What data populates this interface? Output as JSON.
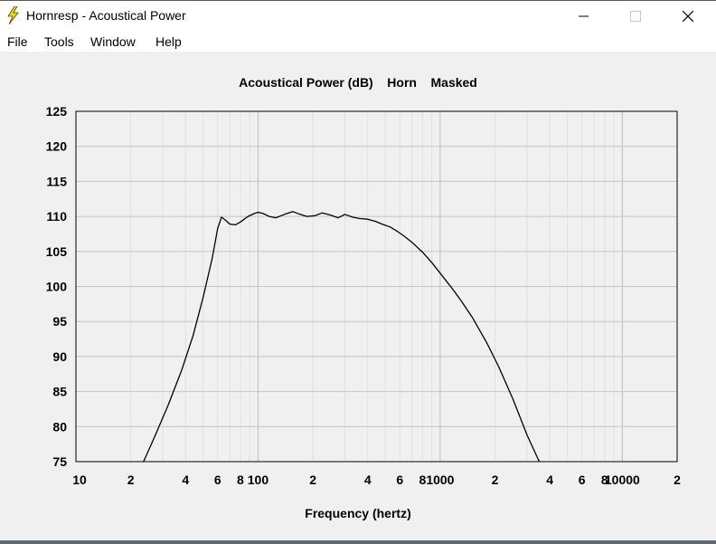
{
  "window": {
    "title": "Hornresp - Acoustical Power",
    "icon": "lightning-bolt-icon",
    "controls": {
      "minimize": "minimize-icon",
      "maximize": "maximize-icon",
      "close": "close-icon"
    }
  },
  "menu": {
    "items": [
      "File",
      "Tools",
      "Window",
      "Help"
    ]
  },
  "chart_data": {
    "type": "line",
    "title": "Acoustical Power (dB)    Horn    Masked",
    "xlabel": "Frequency (hertz)",
    "ylabel": "",
    "xscale": "log",
    "xlim": [
      10,
      20000
    ],
    "ylim": [
      75,
      125
    ],
    "y_ticks": [
      "75",
      "80",
      "85",
      "90",
      "95",
      "100",
      "105",
      "110",
      "115",
      "120",
      "125"
    ],
    "x_tick_labels": [
      {
        "f": 10,
        "label": "10"
      },
      {
        "f": 20,
        "label": "2"
      },
      {
        "f": 40,
        "label": "4"
      },
      {
        "f": 60,
        "label": "6"
      },
      {
        "f": 80,
        "label": "8"
      },
      {
        "f": 100,
        "label": "100"
      },
      {
        "f": 200,
        "label": "2"
      },
      {
        "f": 400,
        "label": "4"
      },
      {
        "f": 600,
        "label": "6"
      },
      {
        "f": 800,
        "label": "8"
      },
      {
        "f": 1000,
        "label": "1000"
      },
      {
        "f": 2000,
        "label": "2"
      },
      {
        "f": 4000,
        "label": "4"
      },
      {
        "f": 6000,
        "label": "6"
      },
      {
        "f": 8000,
        "label": "8"
      },
      {
        "f": 10000,
        "label": "10000"
      },
      {
        "f": 20000,
        "label": "2"
      }
    ],
    "grid": true,
    "line_color": "#000000",
    "series": [
      {
        "x": [
          23.5,
          27,
          32,
          38,
          44,
          50,
          56,
          60,
          63,
          66,
          70,
          75,
          80,
          88,
          95,
          100,
          107,
          115,
          125,
          140,
          155,
          170,
          185,
          205,
          225,
          250,
          275,
          300,
          330,
          360,
          400,
          440,
          480,
          530,
          580,
          640,
          700,
          800,
          900,
          1000,
          1150,
          1300,
          1500,
          1800,
          2100,
          2500,
          3000,
          3500
        ],
        "y": [
          75,
          78.5,
          83,
          88,
          93,
          98.5,
          104,
          108.3,
          109.9,
          109.5,
          108.9,
          108.8,
          109.2,
          110.0,
          110.4,
          110.6,
          110.4,
          110.0,
          109.8,
          110.3,
          110.7,
          110.3,
          110.0,
          110.1,
          110.5,
          110.2,
          109.8,
          110.3,
          109.9,
          109.7,
          109.6,
          109.3,
          108.9,
          108.5,
          107.9,
          107.1,
          106.3,
          104.9,
          103.4,
          101.9,
          99.9,
          98.0,
          95.6,
          92.0,
          88.5,
          84.0,
          78.8,
          75
        ]
      }
    ]
  }
}
